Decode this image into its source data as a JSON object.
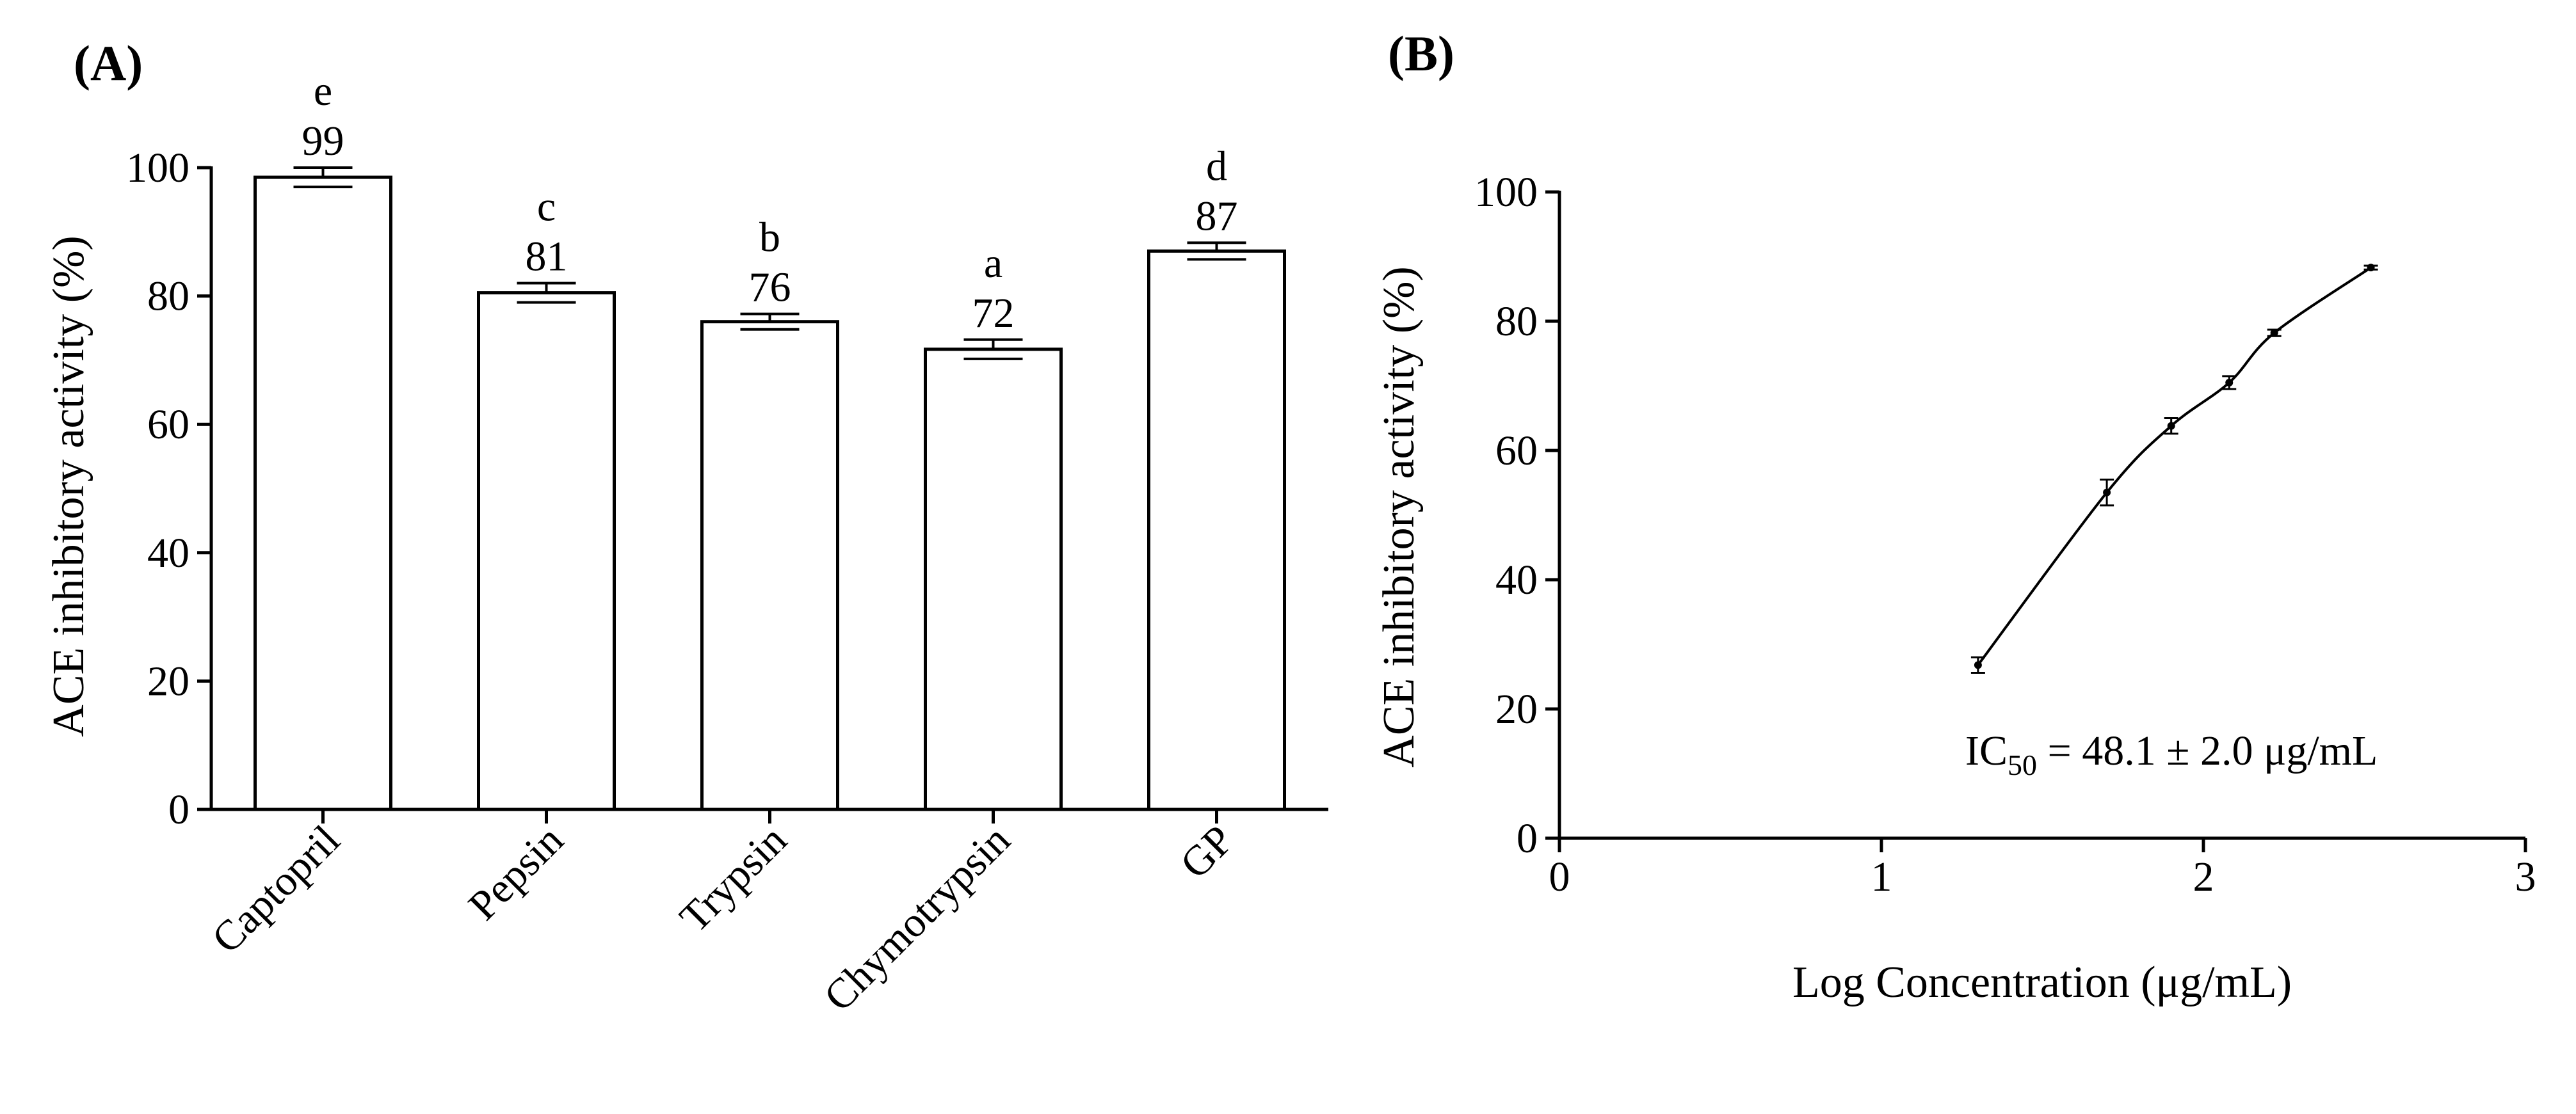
{
  "chart_data": [
    {
      "panel_label": "(A)",
      "type": "bar",
      "categories": [
        "Captopril",
        "Pepsin",
        "Trypsin",
        "Chymotrypsin",
        "GP"
      ],
      "values": [
        98.5,
        80.5,
        76,
        71.7,
        87
      ],
      "errors": [
        1.5,
        1.5,
        1.2,
        1.5,
        1.3
      ],
      "value_labels": [
        "99",
        "81",
        "76",
        "72",
        "87"
      ],
      "letters": [
        "e",
        "c",
        "b",
        "a",
        "d"
      ],
      "ylabel": "ACE inhibitory activity (%)",
      "xlabel": "",
      "ylim": [
        0,
        100
      ],
      "yticks": [
        "0",
        "20",
        "40",
        "60",
        "80",
        "100"
      ],
      "bar_fill": "#ffffff",
      "line_color": "#000000"
    },
    {
      "panel_label": "(B)",
      "type": "scatter",
      "x": [
        1.3,
        1.7,
        1.9,
        2.08,
        2.22,
        2.52
      ],
      "y": [
        26.8,
        53.5,
        63.8,
        70.5,
        78.2,
        88.3
      ],
      "errors": [
        1.2,
        2.0,
        1.2,
        1.0,
        0.5,
        0.3
      ],
      "fit_curve": "sigmoidal",
      "xlabel": "Log Concentration (μg/mL)",
      "ylabel": "ACE inhibitory activity (%)",
      "xlim": [
        0,
        3
      ],
      "ylim": [
        0,
        100
      ],
      "xticks": [
        "0",
        "1",
        "2",
        "3"
      ],
      "yticks": [
        "0",
        "20",
        "40",
        "60",
        "80",
        "100"
      ],
      "annotation": {
        "prefix": "IC",
        "subscript": "50",
        "suffix": " = 48.1 ± 2.0 μg/mL"
      },
      "line_color": "#000000"
    }
  ]
}
